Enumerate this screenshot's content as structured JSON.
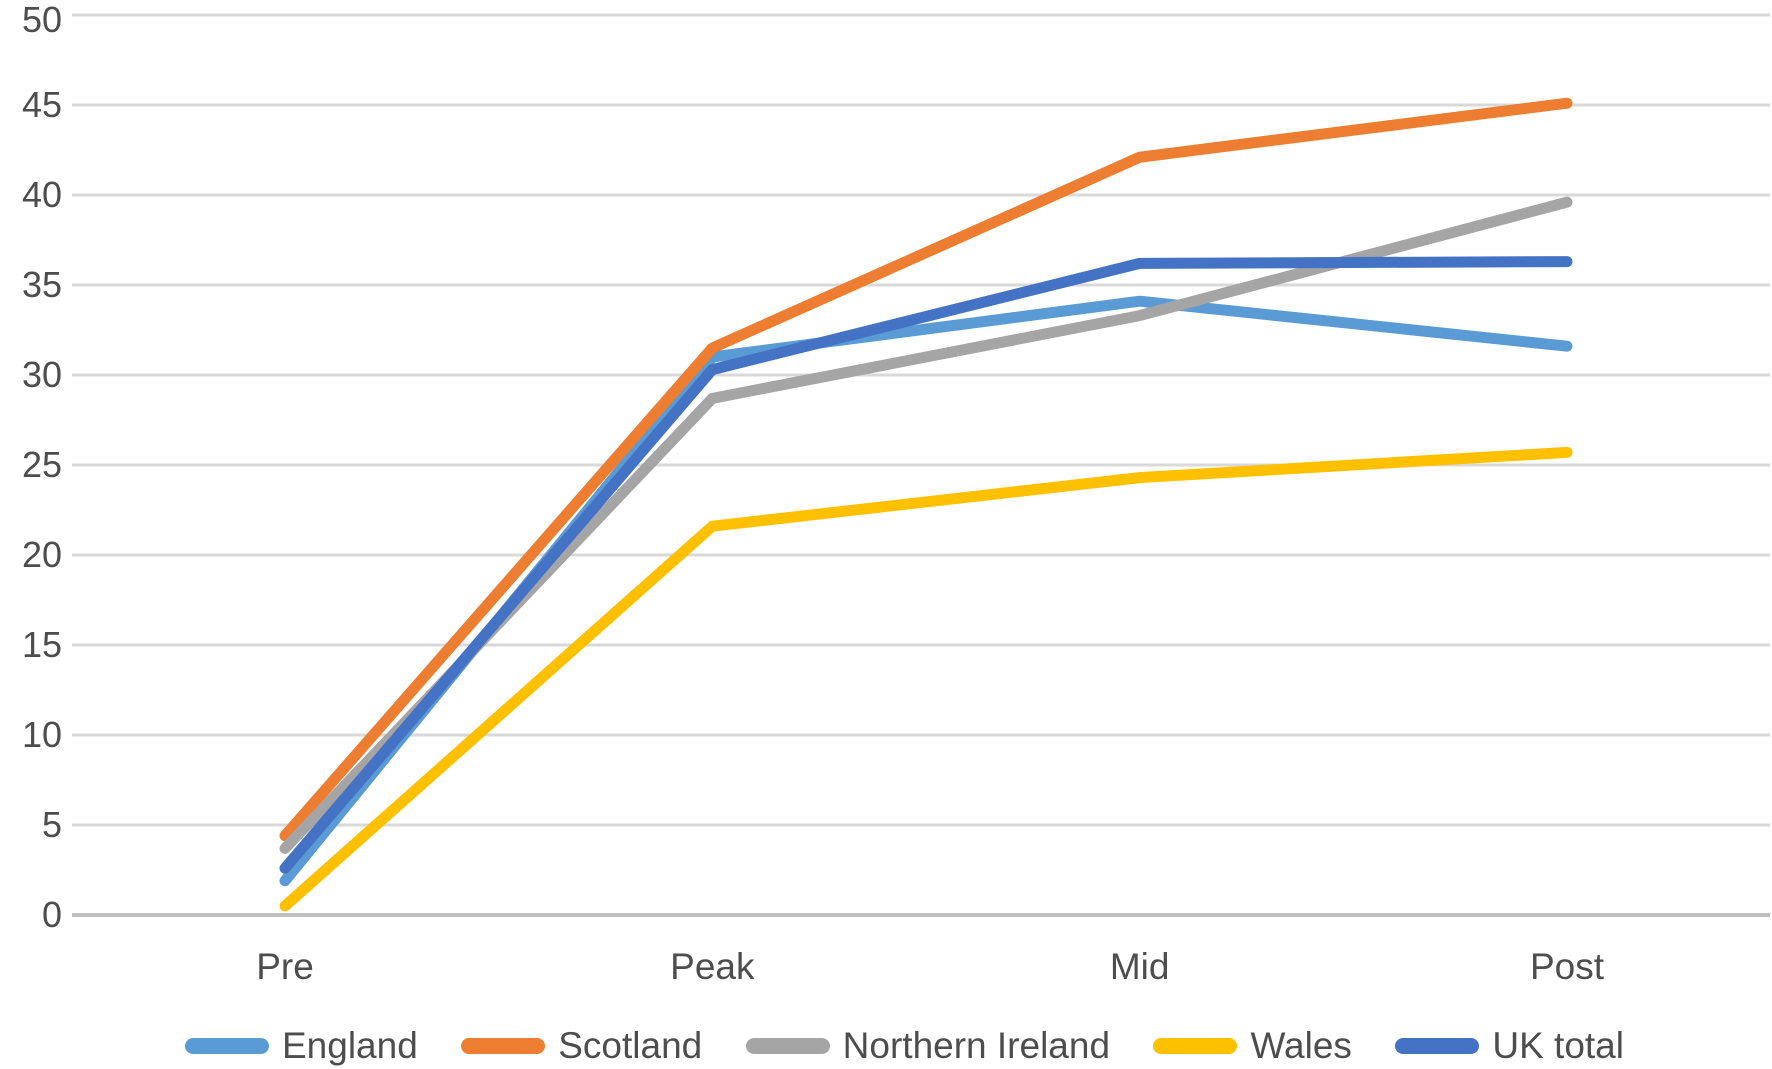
{
  "chart_data": {
    "type": "line",
    "categories": [
      "Pre",
      "Peak",
      "Mid",
      "Post"
    ],
    "series": [
      {
        "name": "England",
        "color": "#5B9BD5",
        "values": [
          1.9,
          31.0,
          34.1,
          31.6
        ]
      },
      {
        "name": "Scotland",
        "color": "#ED7D31",
        "values": [
          4.4,
          31.5,
          42.1,
          45.1
        ]
      },
      {
        "name": "Northern Ireland",
        "color": "#A5A5A5",
        "values": [
          3.7,
          28.7,
          33.3,
          39.6
        ]
      },
      {
        "name": "Wales",
        "color": "#FFC000",
        "values": [
          0.5,
          21.6,
          24.3,
          25.7
        ]
      },
      {
        "name": "UK total",
        "color": "#4472C4",
        "values": [
          2.6,
          30.3,
          36.2,
          36.3
        ]
      }
    ],
    "title": "",
    "xlabel": "",
    "ylabel": "",
    "ylim": [
      0,
      50
    ],
    "ytick_step": 5,
    "yticks": [
      0,
      5,
      10,
      15,
      20,
      25,
      30,
      35,
      40,
      45,
      50
    ],
    "grid": true,
    "gridline_color": "#D9D9D9",
    "axis_line_color": "#BFBFBF",
    "tick_label_color": "#4d4d4d",
    "legend_position": "bottom"
  }
}
